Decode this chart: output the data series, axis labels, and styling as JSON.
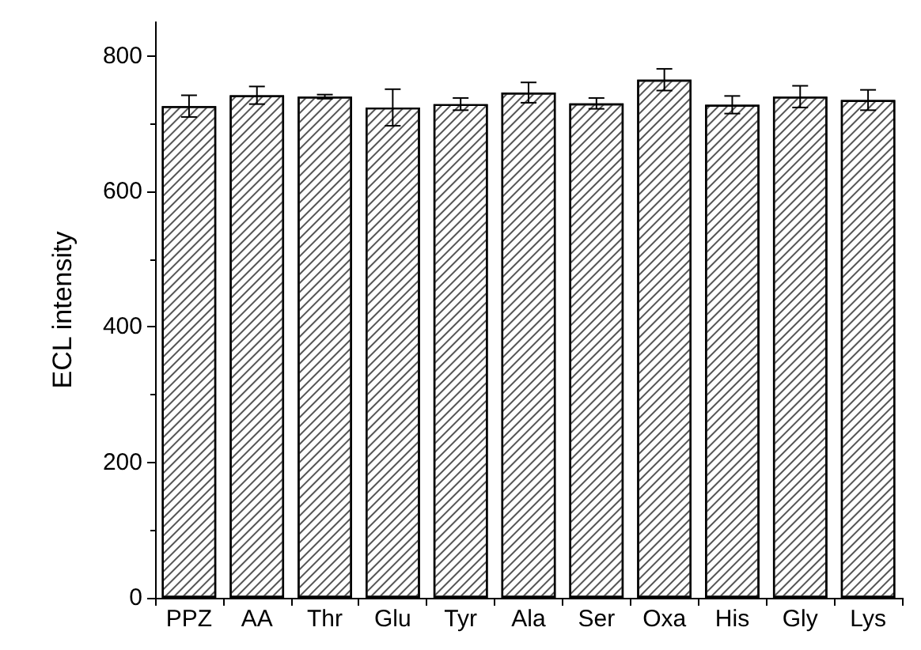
{
  "chart_data": {
    "type": "bar",
    "ylabel": "ECL intensity",
    "categories": [
      "PPZ",
      "AA",
      "Thr",
      "Glu",
      "Tyr",
      "Ala",
      "Ser",
      "Oxa",
      "His",
      "Gly",
      "Lys"
    ],
    "values": [
      726,
      742,
      740,
      724,
      729,
      746,
      730,
      765,
      728,
      740,
      735
    ],
    "errors": [
      16,
      13,
      3,
      27,
      9,
      15,
      8,
      16,
      13,
      16,
      15
    ],
    "color": "#ffffff",
    "ylim": [
      0,
      850
    ],
    "yticks": [
      0,
      200,
      400,
      600,
      800
    ],
    "grid": false
  }
}
